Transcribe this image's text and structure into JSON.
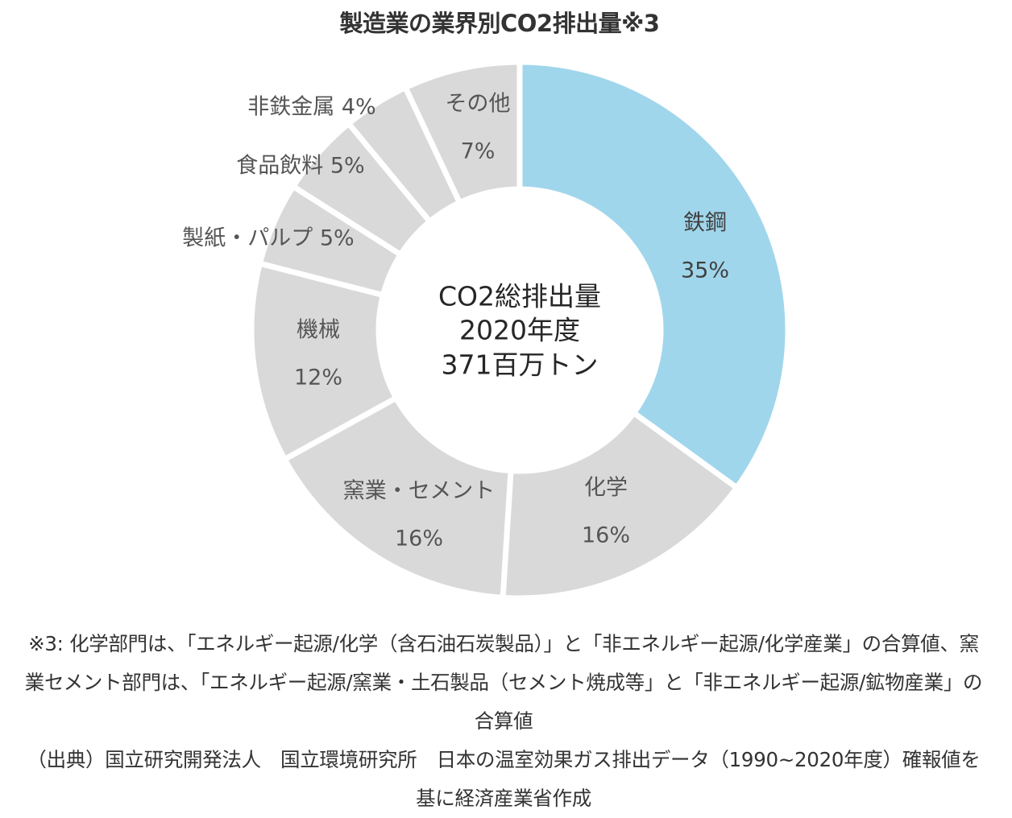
{
  "chart_data": {
    "type": "pie",
    "variant": "donut",
    "title": "製造業の業界別CO2排出量※3",
    "center_label": [
      "CO2総排出量",
      "2020年度",
      "371百万トン"
    ],
    "unit": "%",
    "slices": [
      {
        "name": "鉄鋼",
        "label": "35%",
        "value": 35,
        "color": "#a0d6ec",
        "label_style": "stacked"
      },
      {
        "name": "化学",
        "label": "16%",
        "value": 16,
        "color": "#d9d9d9",
        "label_style": "stacked"
      },
      {
        "name": "窯業・セメント",
        "label": "16%",
        "value": 16,
        "color": "#d9d9d9",
        "label_style": "stacked"
      },
      {
        "name": "機械",
        "label": "12%",
        "value": 12,
        "color": "#d9d9d9",
        "label_style": "stacked"
      },
      {
        "name": "製紙・パルプ",
        "label": "5%",
        "value": 5,
        "color": "#d9d9d9",
        "label_style": "inline"
      },
      {
        "name": "食品飲料",
        "label": "5%",
        "value": 5,
        "color": "#d9d9d9",
        "label_style": "inline"
      },
      {
        "name": "非鉄金属",
        "label": "4%",
        "value": 4,
        "color": "#d9d9d9",
        "label_style": "inline"
      },
      {
        "name": "その他",
        "label": "7%",
        "value": 7,
        "color": "#d9d9d9",
        "label_style": "stacked"
      }
    ]
  },
  "footnote": {
    "note": "※3: 化学部門は、「エネルギー起源/化学（含石油石炭製品）」と「非エネルギー起源/化学産業」の合算値、窯業セメント部門は、「エネルギー起源/窯業・土石製品（セメント焼成等」と「非エネルギー起源/鉱物産業」の合算値",
    "source": "（出典）国立研究開発法人　国立環境研究所　日本の温室効果ガス排出データ（1990~2020年度）確報値を基に経済産業省作成"
  }
}
